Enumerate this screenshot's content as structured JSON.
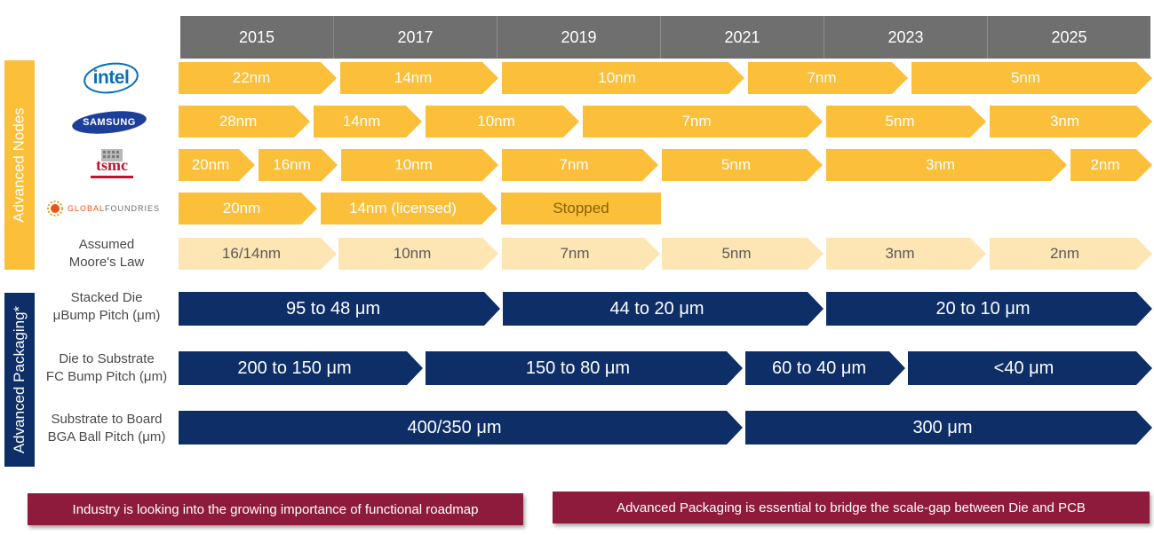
{
  "years": [
    "2015",
    "2017",
    "2019",
    "2021",
    "2023",
    "2025"
  ],
  "sections": {
    "nodes": "Advanced Nodes",
    "packaging": "Advanced Packaging*"
  },
  "logos": {
    "intel": "intel",
    "samsung": "SAMSUNG",
    "tsmc": "tsmc",
    "gf_global": "GLOBAL",
    "gf_foundries": "FOUNDRIES"
  },
  "rows": {
    "intel": [
      "22nm",
      "14nm",
      "10nm",
      "7nm",
      "5nm"
    ],
    "samsung": [
      "28nm",
      "14nm",
      "10nm",
      "7nm",
      "5nm",
      "3nm"
    ],
    "tsmc": [
      "20nm",
      "16nm",
      "10nm",
      "7nm",
      "5nm",
      "3nm",
      "2nm"
    ],
    "globalfoundries": [
      "20nm",
      "14nm (licensed)",
      "Stopped"
    ],
    "moore": [
      "16/14nm",
      "10nm",
      "7nm",
      "5nm",
      "3nm",
      "2nm"
    ]
  },
  "labels": {
    "moore": [
      "Assumed",
      "Moore's Law"
    ],
    "stacked": [
      "Stacked Die",
      "μBump Pitch (μm)"
    ],
    "substrate": [
      "Die to Substrate",
      "FC Bump Pitch (μm)"
    ],
    "board": [
      "Substrate to Board",
      "BGA Ball Pitch (μm)"
    ]
  },
  "packaging": {
    "stacked": [
      "95 to 48 μm",
      "44 to 20 μm",
      "20 to 10 μm"
    ],
    "substrate": [
      "200 to 150 μm",
      "150 to 80 μm",
      "60 to 40 μm",
      "<40 μm"
    ],
    "board": [
      "400/350 μm",
      "300 μm"
    ]
  },
  "banners": {
    "left": "Industry is looking into the growing importance of functional roadmap",
    "right": "Advanced Packaging is essential to bridge the scale-gap between Die and PCB"
  },
  "colors": {
    "node": "#fbbf3a",
    "moore": "#fde6b3",
    "packaging": "#0d2e67",
    "header": "#6f6f6f",
    "banner": "#8e1b3c"
  }
}
